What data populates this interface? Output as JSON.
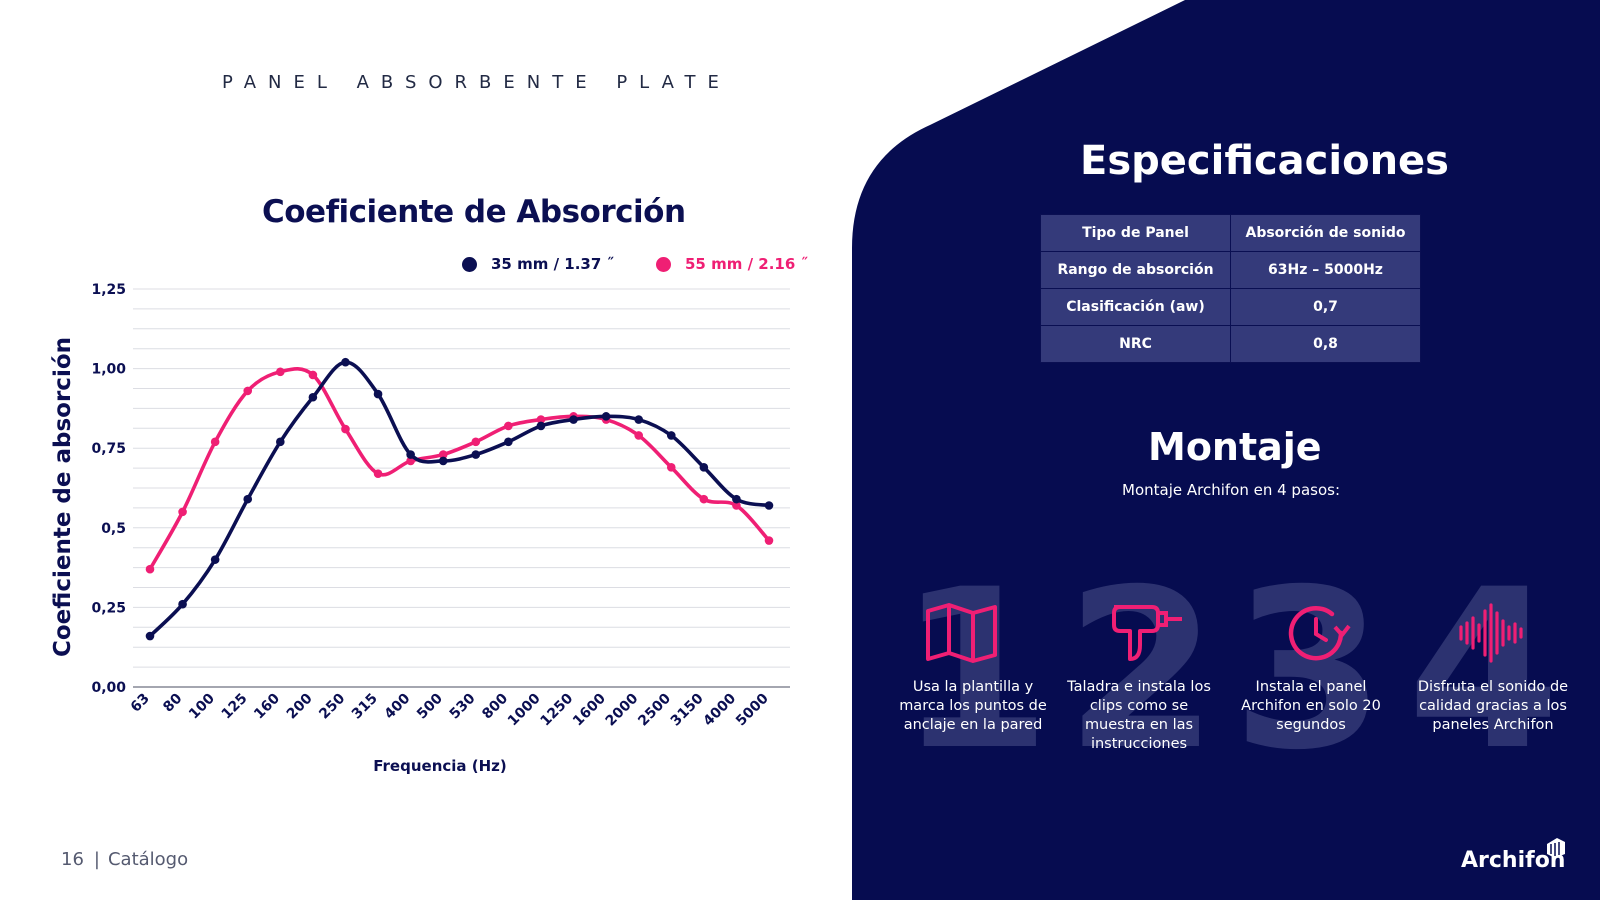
{
  "page": {
    "title": "PANEL ABSORBENTE PLATE",
    "page_number": "16",
    "section": "Catálogo"
  },
  "colors": {
    "navy": "#0b0f52",
    "panel": "#060c50",
    "pink": "#ef1f74",
    "table_cell": "#343a7a"
  },
  "chart_data": {
    "type": "line",
    "title": "Coeficiente de Absorción",
    "xlabel": "Frequencia (Hz)",
    "ylabel": "Coeficiente de absorción",
    "categories": [
      "63",
      "80",
      "100",
      "125",
      "160",
      "200",
      "250",
      "315",
      "400",
      "500",
      "530",
      "800",
      "1000",
      "1250",
      "1600",
      "2000",
      "2500",
      "3150",
      "4000",
      "5000"
    ],
    "ylim": [
      0,
      1.25
    ],
    "yticks": [
      "0,00",
      "0,25",
      "0,5",
      "0,75",
      "1,00",
      "1,25"
    ],
    "ytick_values": [
      0,
      0.25,
      0.5,
      0.75,
      1.0,
      1.25
    ],
    "grid": true,
    "legend_position": "top",
    "series": [
      {
        "name": "35 mm / 1.37 ˝",
        "color": "#0b0f52",
        "values": [
          0.16,
          0.26,
          0.4,
          0.59,
          0.77,
          0.91,
          1.02,
          0.92,
          0.73,
          0.71,
          0.73,
          0.77,
          0.82,
          0.84,
          0.85,
          0.84,
          0.79,
          0.69,
          0.59,
          0.57
        ]
      },
      {
        "name": "55 mm / 2.16 ˝",
        "color": "#ef1f74",
        "values": [
          0.37,
          0.55,
          0.77,
          0.93,
          0.99,
          0.98,
          0.81,
          0.67,
          0.71,
          0.73,
          0.77,
          0.82,
          0.84,
          0.85,
          0.84,
          0.79,
          0.69,
          0.59,
          0.57,
          0.46
        ]
      }
    ]
  },
  "specs": {
    "title": "Especificaciones",
    "rows": [
      [
        "Tipo de Panel",
        "Absorción de sonido"
      ],
      [
        "Rango de absorción",
        "63Hz – 5000Hz"
      ],
      [
        "Clasificación  (aw)",
        "0,7"
      ],
      [
        "NRC",
        "0,8"
      ]
    ]
  },
  "montaje": {
    "title": "Montaje",
    "subtitle": "Montaje Archifon en 4 pasos:",
    "steps": [
      {
        "number": "1",
        "icon": "map-icon",
        "text": "Usa la plantilla y marca los puntos de anclaje en la pared"
      },
      {
        "number": "2",
        "icon": "drill-icon",
        "text": "Taladra e instala los clips como se muestra en las instrucciones"
      },
      {
        "number": "3",
        "icon": "clock-icon",
        "text": "Instala el panel Archifon en solo 20 segundos"
      },
      {
        "number": "4",
        "icon": "sound-wave-icon",
        "text": "Disfruta el sonido de calidad gracias a los paneles Archifon"
      }
    ]
  },
  "brand": {
    "name": "Archifon"
  }
}
